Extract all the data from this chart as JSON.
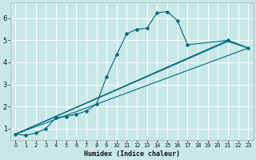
{
  "title": "",
  "xlabel": "Humidex (Indice chaleur)",
  "bg_color": "#c8e8e8",
  "grid_color": "#ffffff",
  "line_color": "#006878",
  "marker_size": 2.5,
  "xlim": [
    -0.5,
    23.5
  ],
  "ylim": [
    0.5,
    6.7
  ],
  "xticks": [
    0,
    1,
    2,
    3,
    4,
    5,
    6,
    7,
    8,
    9,
    10,
    11,
    12,
    13,
    14,
    15,
    16,
    17,
    18,
    19,
    20,
    21,
    22,
    23
  ],
  "yticks": [
    1,
    2,
    3,
    4,
    5,
    6
  ],
  "line_main": {
    "x": [
      0,
      1,
      2,
      3,
      4,
      5,
      6,
      7,
      8,
      9,
      10,
      11,
      12,
      13,
      14,
      15,
      16,
      17,
      21,
      23
    ],
    "y": [
      0.75,
      0.7,
      0.8,
      1.0,
      1.5,
      1.55,
      1.65,
      1.8,
      2.1,
      3.35,
      4.35,
      5.3,
      5.5,
      5.55,
      6.25,
      6.3,
      5.9,
      4.8,
      5.0,
      4.65
    ]
  },
  "line2": {
    "x": [
      0,
      23
    ],
    "y": [
      0.75,
      4.65
    ]
  },
  "line3": {
    "x": [
      0,
      21,
      23
    ],
    "y": [
      0.75,
      5.0,
      4.65
    ]
  },
  "line4": {
    "x": [
      0,
      21,
      23
    ],
    "y": [
      0.75,
      4.95,
      4.65
    ]
  }
}
